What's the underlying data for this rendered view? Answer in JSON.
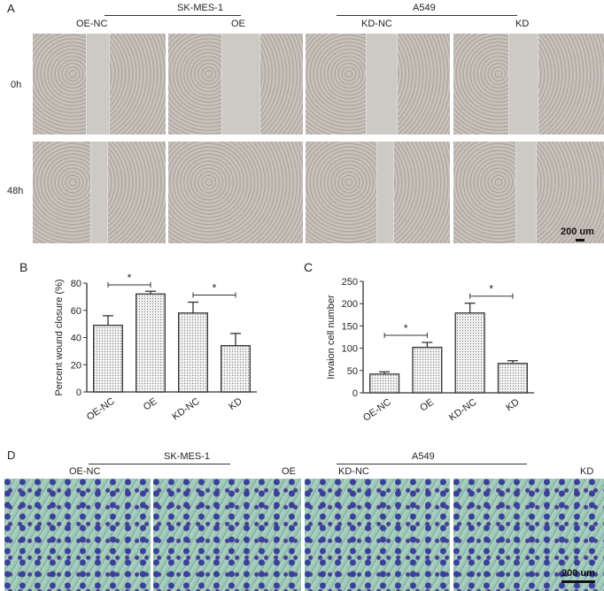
{
  "panel_a": {
    "label": "A",
    "group_left": "SK-MES-1",
    "group_right": "A549",
    "columns": [
      "OE-NC",
      "OE",
      "KD-NC",
      "KD"
    ],
    "rows": [
      "0h",
      "48h"
    ],
    "scale": "200 um"
  },
  "panel_d": {
    "label": "D",
    "group_left": "SK-MES-1",
    "group_right": "A549",
    "columns": [
      "OE-NC",
      "OE",
      "KD-NC",
      "KD"
    ],
    "scale": "200 um"
  },
  "chart_data": [
    {
      "panel": "B",
      "type": "bar",
      "categories": [
        "OE-NC",
        "OE",
        "KD-NC",
        "KD"
      ],
      "values": [
        49,
        72,
        58,
        34
      ],
      "error_upper": [
        56,
        74,
        66,
        43
      ],
      "ylabel": "Percent wound closure (%)",
      "ylim": [
        0,
        80
      ],
      "yticks": [
        "0",
        "20",
        "40",
        "60",
        "80"
      ],
      "significance": [
        {
          "pair": [
            "OE-NC",
            "OE"
          ],
          "label": "*"
        },
        {
          "pair": [
            "KD-NC",
            "KD"
          ],
          "label": "*"
        }
      ],
      "grid": false,
      "bar_fill": "dotted"
    },
    {
      "panel": "C",
      "type": "bar",
      "categories": [
        "OE-NC",
        "OE",
        "KD-NC",
        "KD"
      ],
      "values": [
        42,
        102,
        179,
        66
      ],
      "error_upper": [
        47,
        113,
        201,
        72
      ],
      "ylabel": "Invaion cell number",
      "ylim": [
        0,
        250
      ],
      "yticks": [
        "0",
        "50",
        "100",
        "150",
        "200",
        "250"
      ],
      "significance": [
        {
          "pair": [
            "OE-NC",
            "OE"
          ],
          "label": "*"
        },
        {
          "pair": [
            "KD-NC",
            "KD"
          ],
          "label": "*"
        }
      ],
      "grid": false,
      "bar_fill": "dotted"
    }
  ]
}
